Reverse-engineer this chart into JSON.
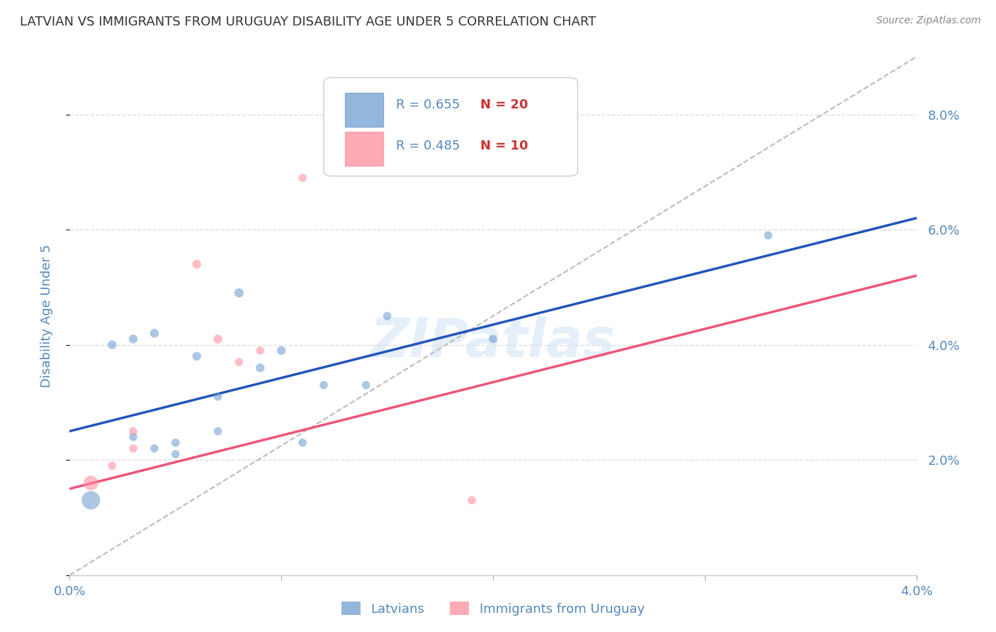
{
  "title": "LATVIAN VS IMMIGRANTS FROM URUGUAY DISABILITY AGE UNDER 5 CORRELATION CHART",
  "source": "Source: ZipAtlas.com",
  "ylabel": "Disability Age Under 5",
  "xlim": [
    0.0,
    0.04
  ],
  "ylim": [
    0.0,
    0.09
  ],
  "yticks": [
    0.0,
    0.02,
    0.04,
    0.06,
    0.08
  ],
  "ytick_labels_right": [
    "",
    "2.0%",
    "4.0%",
    "6.0%",
    "8.0%"
  ],
  "xticks": [
    0.0,
    0.01,
    0.02,
    0.03,
    0.04
  ],
  "xtick_labels": [
    "0.0%",
    "",
    "",
    "",
    "4.0%"
  ],
  "latvian_R": 0.655,
  "latvian_N": 20,
  "uruguay_R": 0.485,
  "uruguay_N": 10,
  "latvian_color": "#6699CC",
  "uruguay_color": "#FF8899",
  "trend_line_color_latvian": "#2255BB",
  "trend_line_color_uruguay": "#EE5577",
  "diagonal_line_color": "#BBBBBB",
  "background_color": "#FFFFFF",
  "grid_color": "#DDDDDD",
  "title_color": "#333333",
  "axis_label_color": "#5588BB",
  "latvians_label": "Latvians",
  "uruguay_label": "Immigrants from Uruguay",
  "latvian_points_x": [
    0.001,
    0.002,
    0.003,
    0.003,
    0.004,
    0.004,
    0.005,
    0.005,
    0.006,
    0.007,
    0.007,
    0.008,
    0.009,
    0.01,
    0.011,
    0.012,
    0.014,
    0.015,
    0.02,
    0.033
  ],
  "latvian_points_y": [
    0.013,
    0.04,
    0.024,
    0.041,
    0.022,
    0.042,
    0.021,
    0.023,
    0.038,
    0.031,
    0.025,
    0.049,
    0.036,
    0.039,
    0.023,
    0.033,
    0.033,
    0.045,
    0.041,
    0.059
  ],
  "latvian_point_sizes": [
    350,
    80,
    70,
    80,
    70,
    80,
    70,
    70,
    80,
    70,
    70,
    90,
    80,
    80,
    70,
    70,
    70,
    70,
    70,
    70
  ],
  "uruguay_points_x": [
    0.001,
    0.002,
    0.003,
    0.003,
    0.006,
    0.007,
    0.008,
    0.009,
    0.011,
    0.019
  ],
  "uruguay_points_y": [
    0.016,
    0.019,
    0.022,
    0.025,
    0.054,
    0.041,
    0.037,
    0.039,
    0.069,
    0.013
  ],
  "uruguay_point_sizes": [
    220,
    70,
    70,
    70,
    80,
    80,
    70,
    70,
    70,
    70
  ],
  "latvian_trend_x0": 0.0,
  "latvian_trend_y0": 0.025,
  "latvian_trend_x1": 0.04,
  "latvian_trend_y1": 0.062,
  "uruguay_trend_x0": 0.0,
  "uruguay_trend_y0": 0.015,
  "uruguay_trend_x1": 0.04,
  "uruguay_trend_y1": 0.052
}
